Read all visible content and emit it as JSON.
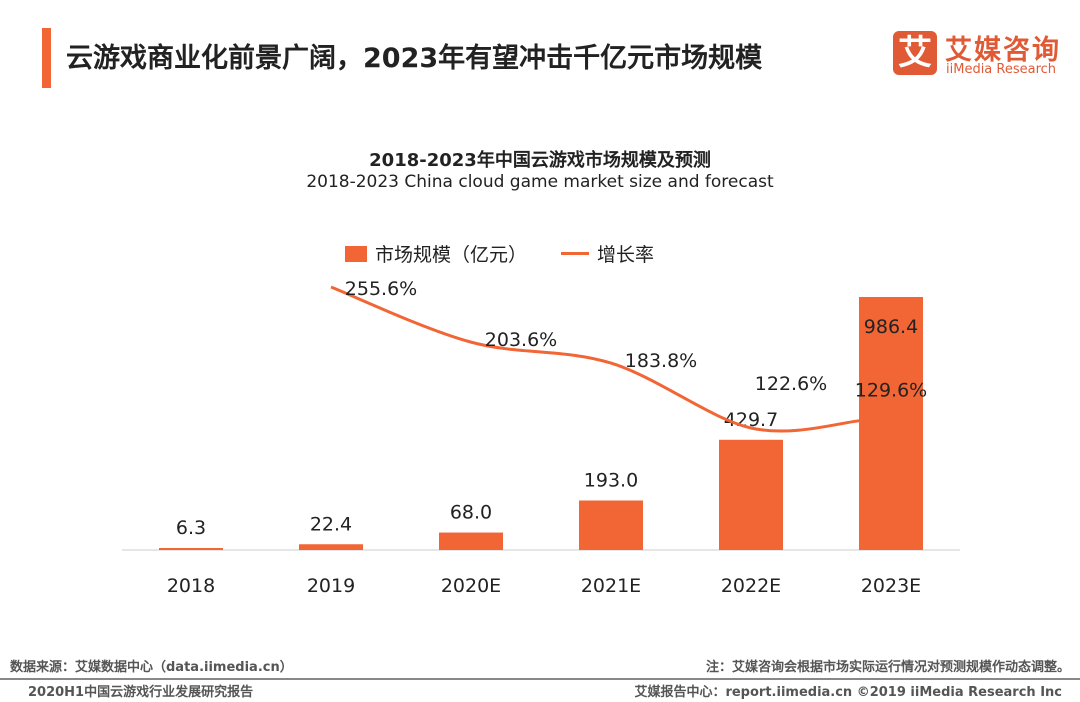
{
  "header": {
    "title": "云游戏商业化前景广阔，2023年有望冲击千亿元市场规模",
    "logo_mark": "艾",
    "logo_cn": "艾媒咨询",
    "logo_en": "iiMedia Research"
  },
  "chart_data": {
    "type": "bar+line",
    "title": "2018-2023年中国云游戏市场规模及预测",
    "subtitle": "2018-2023 China cloud game market size and forecast",
    "categories": [
      "2018",
      "2019",
      "2020E",
      "2021E",
      "2022E",
      "2023E"
    ],
    "series": [
      {
        "name": "市场规模（亿元）",
        "type": "bar",
        "values": [
          6.3,
          22.4,
          68.0,
          193.0,
          429.7,
          986.4
        ],
        "labels": [
          "6.3",
          "22.4",
          "68.0",
          "193.0",
          "429.7",
          "986.4"
        ]
      },
      {
        "name": "增长率",
        "type": "line",
        "values": [
          null,
          255.6,
          203.6,
          183.8,
          122.6,
          129.6
        ],
        "labels": [
          "",
          "255.6%",
          "203.6%",
          "183.8%",
          "122.6%",
          "129.6%"
        ]
      }
    ],
    "legend_position": "top-center",
    "colors": {
      "bar": "#f26534",
      "line": "#f26534"
    }
  },
  "footer": {
    "source": "数据来源：艾媒数据中心（data.iimedia.cn）",
    "note": "注：艾媒咨询会根据市场实际运行情况对预测规模作动态调整。",
    "report": "2020H1中国云游戏行业发展研究报告",
    "site": "艾媒报告中心：report.iimedia.cn ©2019  iiMedia Research  Inc"
  }
}
